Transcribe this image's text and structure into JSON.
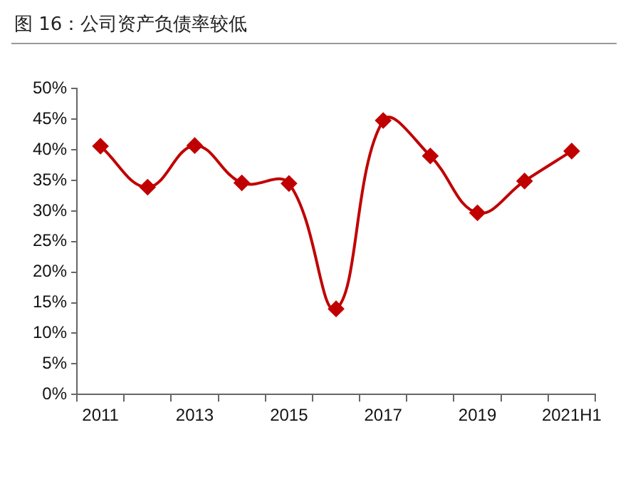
{
  "chart_data": {
    "type": "line",
    "title": "图 16：公司资产负债率较低",
    "categories": [
      "2011",
      null,
      "2013",
      null,
      "2015",
      null,
      "2017",
      null,
      "2019",
      null,
      "2021H1"
    ],
    "series": [
      {
        "color": "#c00000",
        "values": [
          40.6,
          33.9,
          40.7,
          34.6,
          34.5,
          14,
          44.8,
          39,
          29.7,
          34.9,
          39.8
        ]
      }
    ],
    "ylim": [
      0,
      50
    ],
    "yticks": [
      {
        "value": 0,
        "label": "0%"
      },
      {
        "value": 5,
        "label": "5%"
      },
      {
        "value": 10,
        "label": "10%"
      },
      {
        "value": 15,
        "label": "15%"
      },
      {
        "value": 20,
        "label": "20%"
      },
      {
        "value": 25,
        "label": "25%"
      },
      {
        "value": 30,
        "label": "30%"
      },
      {
        "value": 35,
        "label": "35%"
      },
      {
        "value": 40,
        "label": "40%"
      },
      {
        "value": 45,
        "label": "45%"
      },
      {
        "value": 50,
        "label": "50%"
      }
    ],
    "grid": false,
    "legend": false,
    "marker": "diamond",
    "line_style": "solid"
  }
}
